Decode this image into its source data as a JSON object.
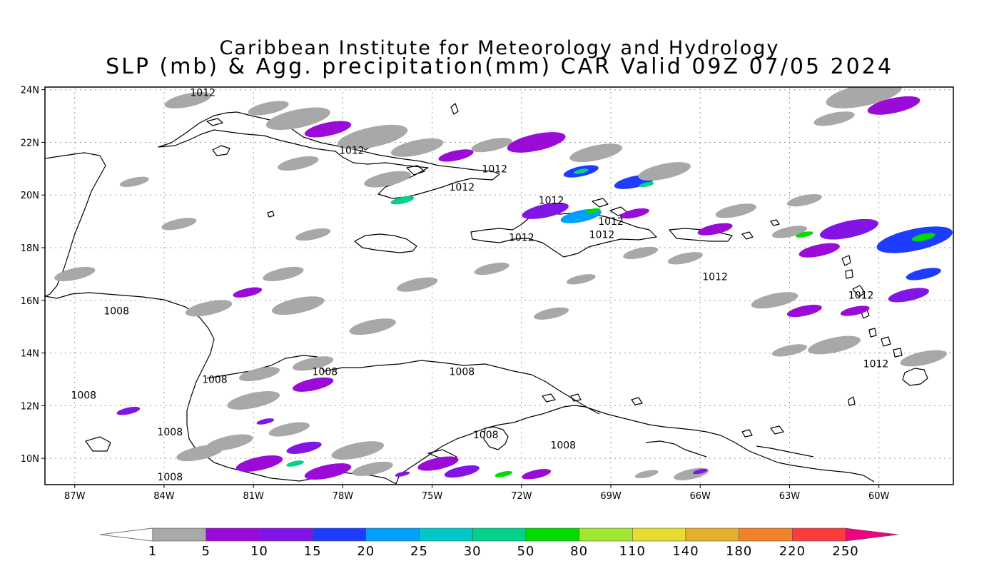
{
  "title": {
    "line1": "Caribbean Institute for Meteorology and Hydrology",
    "line2": "SLP (mb) & Agg. precipitation(mm) CAR Valid 09Z 07/05 2024"
  },
  "map": {
    "lon_range": [
      -88,
      -57.5
    ],
    "lat_range": [
      9,
      24.1
    ],
    "grid": true,
    "lon_ticks": [
      {
        "value": -87,
        "label": "87W"
      },
      {
        "value": -84,
        "label": "84W"
      },
      {
        "value": -81,
        "label": "81W"
      },
      {
        "value": -78,
        "label": "78W"
      },
      {
        "value": -75,
        "label": "75W"
      },
      {
        "value": -72,
        "label": "72W"
      },
      {
        "value": -69,
        "label": "69W"
      },
      {
        "value": -66,
        "label": "66W"
      },
      {
        "value": -63,
        "label": "63W"
      },
      {
        "value": -60,
        "label": "60W"
      }
    ],
    "lat_ticks": [
      {
        "value": 24,
        "label": "24N"
      },
      {
        "value": 22,
        "label": "22N"
      },
      {
        "value": 20,
        "label": "20N"
      },
      {
        "value": 18,
        "label": "18N"
      },
      {
        "value": 16,
        "label": "16N"
      },
      {
        "value": 14,
        "label": "14N"
      },
      {
        "value": 12,
        "label": "12N"
      },
      {
        "value": 10,
        "label": "10N"
      }
    ],
    "isobar_labels": [
      {
        "text": "1012",
        "lon": -82.7,
        "lat": 23.9
      },
      {
        "text": "1012",
        "lon": -77.7,
        "lat": 21.7
      },
      {
        "text": "1012",
        "lon": -72.9,
        "lat": 21.0
      },
      {
        "text": "1012",
        "lon": -74.0,
        "lat": 20.3
      },
      {
        "text": "1012",
        "lon": -71.0,
        "lat": 19.8
      },
      {
        "text": "1012",
        "lon": -69.0,
        "lat": 19.0
      },
      {
        "text": "1012",
        "lon": -69.3,
        "lat": 18.5
      },
      {
        "text": "1012",
        "lon": -72.0,
        "lat": 18.4
      },
      {
        "text": "1012",
        "lon": -65.5,
        "lat": 16.9
      },
      {
        "text": "1012",
        "lon": -60.6,
        "lat": 16.2
      },
      {
        "text": "1012",
        "lon": -60.1,
        "lat": 13.6
      },
      {
        "text": "1008",
        "lon": -85.6,
        "lat": 15.6
      },
      {
        "text": "1008",
        "lon": -82.3,
        "lat": 13.0
      },
      {
        "text": "1008",
        "lon": -78.6,
        "lat": 13.3
      },
      {
        "text": "1008",
        "lon": -74.0,
        "lat": 13.3
      },
      {
        "text": "1008",
        "lon": -86.7,
        "lat": 12.4
      },
      {
        "text": "1008",
        "lon": -83.8,
        "lat": 11.0
      },
      {
        "text": "1008",
        "lon": -73.2,
        "lat": 10.9
      },
      {
        "text": "1008",
        "lon": -70.6,
        "lat": 10.5
      },
      {
        "text": "1008",
        "lon": -83.8,
        "lat": 9.3
      }
    ],
    "precip_cells": [
      {
        "lon": -83.2,
        "lat": 23.6,
        "len": 1.6,
        "level": 0
      },
      {
        "lon": -80.5,
        "lat": 23.3,
        "len": 1.4,
        "level": 0
      },
      {
        "lon": -79.5,
        "lat": 22.9,
        "len": 2.2,
        "level": 0
      },
      {
        "lon": -78.5,
        "lat": 22.5,
        "len": 1.6,
        "level": 1
      },
      {
        "lon": -77.0,
        "lat": 22.2,
        "len": 2.4,
        "level": 0
      },
      {
        "lon": -75.5,
        "lat": 21.8,
        "len": 1.8,
        "level": 0
      },
      {
        "lon": -74.2,
        "lat": 21.5,
        "len": 1.2,
        "level": 1
      },
      {
        "lon": -73.0,
        "lat": 21.9,
        "len": 1.4,
        "level": 0
      },
      {
        "lon": -71.5,
        "lat": 22.0,
        "len": 2.0,
        "level": 1
      },
      {
        "lon": -69.5,
        "lat": 21.6,
        "len": 1.8,
        "level": 0
      },
      {
        "lon": -70.0,
        "lat": 20.9,
        "len": 1.2,
        "level": 3
      },
      {
        "lon": -70.0,
        "lat": 20.9,
        "len": 0.5,
        "level": 6
      },
      {
        "lon": -68.2,
        "lat": 20.5,
        "len": 1.4,
        "level": 3
      },
      {
        "lon": -67.8,
        "lat": 20.4,
        "len": 0.5,
        "level": 6
      },
      {
        "lon": -67.2,
        "lat": 20.9,
        "len": 1.8,
        "level": 0
      },
      {
        "lon": -60.5,
        "lat": 23.8,
        "len": 2.6,
        "level": 0
      },
      {
        "lon": -59.5,
        "lat": 23.4,
        "len": 1.8,
        "level": 1
      },
      {
        "lon": -61.5,
        "lat": 22.9,
        "len": 1.4,
        "level": 0
      },
      {
        "lon": -79.5,
        "lat": 21.2,
        "len": 1.4,
        "level": 0
      },
      {
        "lon": -76.5,
        "lat": 20.6,
        "len": 1.6,
        "level": 0
      },
      {
        "lon": -76.0,
        "lat": 19.8,
        "len": 0.8,
        "level": 6
      },
      {
        "lon": -71.2,
        "lat": 19.4,
        "len": 1.6,
        "level": 2
      },
      {
        "lon": -70.0,
        "lat": 19.2,
        "len": 1.4,
        "level": 4
      },
      {
        "lon": -69.6,
        "lat": 19.4,
        "len": 0.5,
        "level": 7
      },
      {
        "lon": -68.2,
        "lat": 19.3,
        "len": 1.0,
        "level": 1
      },
      {
        "lon": -65.5,
        "lat": 18.7,
        "len": 1.2,
        "level": 1
      },
      {
        "lon": -63.0,
        "lat": 18.6,
        "len": 1.2,
        "level": 0
      },
      {
        "lon": -61.0,
        "lat": 18.7,
        "len": 2.0,
        "level": 2
      },
      {
        "lon": -62.5,
        "lat": 18.5,
        "len": 0.6,
        "level": 7
      },
      {
        "lon": -58.8,
        "lat": 18.3,
        "len": 2.6,
        "level": 3
      },
      {
        "lon": -58.5,
        "lat": 18.4,
        "len": 0.8,
        "level": 7
      },
      {
        "lon": -62.0,
        "lat": 17.9,
        "len": 1.4,
        "level": 1
      },
      {
        "lon": -64.8,
        "lat": 19.4,
        "len": 1.4,
        "level": 0
      },
      {
        "lon": -62.5,
        "lat": 19.8,
        "len": 1.2,
        "level": 0
      },
      {
        "lon": -58.5,
        "lat": 17.0,
        "len": 1.2,
        "level": 3
      },
      {
        "lon": -59.0,
        "lat": 16.2,
        "len": 1.4,
        "level": 2
      },
      {
        "lon": -62.5,
        "lat": 15.6,
        "len": 1.2,
        "level": 1
      },
      {
        "lon": -60.8,
        "lat": 15.6,
        "len": 1.0,
        "level": 1
      },
      {
        "lon": -61.5,
        "lat": 14.3,
        "len": 1.8,
        "level": 0
      },
      {
        "lon": -63.0,
        "lat": 14.1,
        "len": 1.2,
        "level": 0
      },
      {
        "lon": -58.5,
        "lat": 13.8,
        "len": 1.6,
        "level": 0
      },
      {
        "lon": -66.5,
        "lat": 17.6,
        "len": 1.2,
        "level": 0
      },
      {
        "lon": -68.0,
        "lat": 17.8,
        "len": 1.2,
        "level": 0
      },
      {
        "lon": -81.2,
        "lat": 16.3,
        "len": 1.0,
        "level": 1
      },
      {
        "lon": -82.5,
        "lat": 15.7,
        "len": 1.6,
        "level": 0
      },
      {
        "lon": -79.5,
        "lat": 15.8,
        "len": 1.8,
        "level": 0
      },
      {
        "lon": -80.0,
        "lat": 17.0,
        "len": 1.4,
        "level": 0
      },
      {
        "lon": -87.0,
        "lat": 17.0,
        "len": 1.4,
        "level": 0
      },
      {
        "lon": -79.0,
        "lat": 13.6,
        "len": 1.4,
        "level": 0
      },
      {
        "lon": -80.8,
        "lat": 13.2,
        "len": 1.4,
        "level": 0
      },
      {
        "lon": -79.0,
        "lat": 12.8,
        "len": 1.4,
        "level": 1
      },
      {
        "lon": -81.0,
        "lat": 12.2,
        "len": 1.8,
        "level": 0
      },
      {
        "lon": -80.6,
        "lat": 11.4,
        "len": 0.6,
        "level": 2
      },
      {
        "lon": -79.8,
        "lat": 11.1,
        "len": 1.4,
        "level": 0
      },
      {
        "lon": -79.3,
        "lat": 10.4,
        "len": 1.2,
        "level": 2
      },
      {
        "lon": -79.6,
        "lat": 9.8,
        "len": 0.6,
        "level": 6
      },
      {
        "lon": -80.8,
        "lat": 9.8,
        "len": 1.6,
        "level": 1
      },
      {
        "lon": -78.5,
        "lat": 9.5,
        "len": 1.6,
        "level": 1
      },
      {
        "lon": -81.8,
        "lat": 10.6,
        "len": 1.6,
        "level": 0
      },
      {
        "lon": -82.8,
        "lat": 10.2,
        "len": 1.6,
        "level": 0
      },
      {
        "lon": -77.5,
        "lat": 10.3,
        "len": 1.8,
        "level": 0
      },
      {
        "lon": -77.0,
        "lat": 9.6,
        "len": 1.4,
        "level": 0
      },
      {
        "lon": -74.8,
        "lat": 9.8,
        "len": 1.4,
        "level": 1
      },
      {
        "lon": -74.0,
        "lat": 9.5,
        "len": 1.2,
        "level": 2
      },
      {
        "lon": -72.6,
        "lat": 9.4,
        "len": 0.6,
        "level": 7
      },
      {
        "lon": -71.5,
        "lat": 9.4,
        "len": 1.0,
        "level": 1
      },
      {
        "lon": -76.0,
        "lat": 9.4,
        "len": 0.5,
        "level": 2
      },
      {
        "lon": -66.3,
        "lat": 9.4,
        "len": 1.2,
        "level": 0
      },
      {
        "lon": -66.0,
        "lat": 9.5,
        "len": 0.5,
        "level": 2
      },
      {
        "lon": -67.8,
        "lat": 9.4,
        "len": 0.8,
        "level": 0
      },
      {
        "lon": -85.2,
        "lat": 11.8,
        "len": 0.8,
        "level": 2
      },
      {
        "lon": -79.0,
        "lat": 18.5,
        "len": 1.2,
        "level": 0
      },
      {
        "lon": -85.0,
        "lat": 20.5,
        "len": 1.0,
        "level": 0
      },
      {
        "lon": -77.0,
        "lat": 15.0,
        "len": 1.6,
        "level": 0
      },
      {
        "lon": -75.5,
        "lat": 16.6,
        "len": 1.4,
        "level": 0
      },
      {
        "lon": -73.0,
        "lat": 17.2,
        "len": 1.2,
        "level": 0
      },
      {
        "lon": -83.5,
        "lat": 18.9,
        "len": 1.2,
        "level": 0
      },
      {
        "lon": -71.0,
        "lat": 15.5,
        "len": 1.2,
        "level": 0
      },
      {
        "lon": -70.0,
        "lat": 16.8,
        "len": 1.0,
        "level": 0
      },
      {
        "lon": -63.5,
        "lat": 16.0,
        "len": 1.6,
        "level": 0
      }
    ]
  },
  "colorbar": {
    "labels": [
      "1",
      "5",
      "10",
      "15",
      "20",
      "25",
      "30",
      "50",
      "80",
      "110",
      "140",
      "180",
      "220",
      "250"
    ],
    "colors": [
      "#a8a8a8",
      "#9b0bd8",
      "#8214e6",
      "#1e3cff",
      "#00a0ff",
      "#00c8c8",
      "#00d28c",
      "#00dc00",
      "#a0e632",
      "#e6dc32",
      "#e6af2d",
      "#f08228",
      "#fa3c3c",
      "#f00082"
    ]
  }
}
